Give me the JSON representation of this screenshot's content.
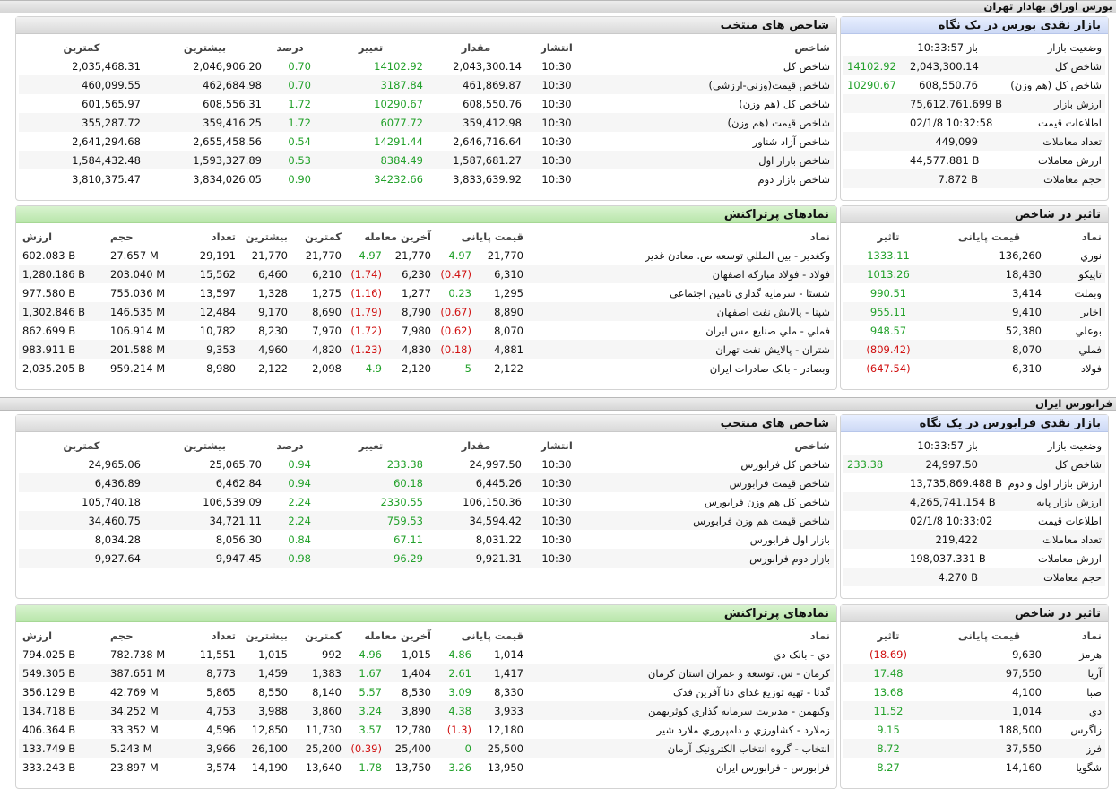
{
  "colors": {
    "positive": "#22a12a",
    "negative": "#d01010"
  },
  "tehran": {
    "section_title": "بورس اوراق بهادار تهران",
    "glance": {
      "title": "بازار نقدی بورس در یک نگاه",
      "rows": [
        {
          "label": "وضعیت بازار",
          "value": "باز 10:33:57",
          "change": ""
        },
        {
          "label": "شاخص کل",
          "value": "2,043,300.14",
          "change": "14102.92"
        },
        {
          "label": "شاخص کل (هم وزن)",
          "value": "608,550.76",
          "change": "10290.67"
        },
        {
          "label": "ارزش بازار",
          "value": "75,612,761.699 B",
          "change": ""
        },
        {
          "label": "اطلاعات قیمت",
          "value": "02/1/8 10:32:58",
          "change": ""
        },
        {
          "label": "تعداد معاملات",
          "value": "449,099",
          "change": ""
        },
        {
          "label": "ارزش معاملات",
          "value": "44,577.881 B",
          "change": ""
        },
        {
          "label": "حجم معاملات",
          "value": "7.872 B",
          "change": ""
        }
      ]
    },
    "indices": {
      "title": "شاخص های منتخب",
      "headers": {
        "name": "شاخص",
        "pub": "انتشار",
        "amount": "مقدار",
        "change": "تغییر",
        "pct": "درصد",
        "max": "بیشترین",
        "min": "کمترین"
      },
      "rows": [
        {
          "name": "شاخص کل",
          "pub": "10:30",
          "amount": "2,043,300.14",
          "change": "14102.92",
          "pct": "0.70",
          "max": "2,046,906.20",
          "min": "2,035,468.31"
        },
        {
          "name": "شاخص قیمت(وزني-ارزشي)",
          "pub": "10:30",
          "amount": "461,869.87",
          "change": "3187.84",
          "pct": "0.70",
          "max": "462,684.98",
          "min": "460,099.55"
        },
        {
          "name": "شاخص کل (هم وزن)",
          "pub": "10:30",
          "amount": "608,550.76",
          "change": "10290.67",
          "pct": "1.72",
          "max": "608,556.31",
          "min": "601,565.97"
        },
        {
          "name": "شاخص قیمت (هم وزن)",
          "pub": "10:30",
          "amount": "359,412.98",
          "change": "6077.72",
          "pct": "1.72",
          "max": "359,416.25",
          "min": "355,287.72"
        },
        {
          "name": "شاخص آزاد شناور",
          "pub": "10:30",
          "amount": "2,646,716.64",
          "change": "14291.44",
          "pct": "0.54",
          "max": "2,655,458.56",
          "min": "2,641,294.68"
        },
        {
          "name": "شاخص بازار اول",
          "pub": "10:30",
          "amount": "1,587,681.27",
          "change": "8384.49",
          "pct": "0.53",
          "max": "1,593,327.89",
          "min": "1,584,432.48"
        },
        {
          "name": "شاخص بازار دوم",
          "pub": "10:30",
          "amount": "3,833,639.92",
          "change": "34232.66",
          "pct": "0.90",
          "max": "3,834,026.05",
          "min": "3,810,375.47"
        }
      ]
    },
    "impact": {
      "title": "تاثیر در شاخص",
      "headers": {
        "symbol": "نماد",
        "close": "قیمت پایانی",
        "effect": "تاثیر"
      },
      "rows": [
        {
          "symbol": "نوري",
          "close": "136,260",
          "effect": "1333.11",
          "neg": false
        },
        {
          "symbol": "تاپيکو",
          "close": "18,430",
          "effect": "1013.26",
          "neg": false
        },
        {
          "symbol": "وبملت",
          "close": "3,414",
          "effect": "990.51",
          "neg": false
        },
        {
          "symbol": "اخابر",
          "close": "9,410",
          "effect": "955.11",
          "neg": false
        },
        {
          "symbol": "بوعلي",
          "close": "52,380",
          "effect": "948.57",
          "neg": false
        },
        {
          "symbol": "فملي",
          "close": "8,070",
          "effect": "(809.42)",
          "neg": true
        },
        {
          "symbol": "فولاد",
          "close": "6,310",
          "effect": "(647.54)",
          "neg": true
        }
      ]
    },
    "active": {
      "title": "نمادهای پرتراکنش",
      "headers": {
        "symbol": "نماد",
        "close": "قیمت پایانی",
        "last": "آخرین معامله",
        "min": "کمترین",
        "max": "بیشترین",
        "count": "تعداد",
        "volume": "حجم",
        "value": "ارزش"
      },
      "rows": [
        {
          "symbol": "وکغدير - بين المللي توسعه ص. معادن غدير",
          "close": "21,770",
          "close_chg": "4.97",
          "close_neg": false,
          "last": "21,770",
          "last_chg": "4.97",
          "last_neg": false,
          "min": "21,770",
          "max": "21,770",
          "count": "29,191",
          "volume": "27.657 M",
          "value": "602.083 B"
        },
        {
          "symbol": "فولاد - فولاد مبارکه اصفهان",
          "close": "6,310",
          "close_chg": "(0.47)",
          "close_neg": true,
          "last": "6,230",
          "last_chg": "(1.74)",
          "last_neg": true,
          "min": "6,210",
          "max": "6,460",
          "count": "15,562",
          "volume": "203.040 M",
          "value": "1,280.186 B"
        },
        {
          "symbol": "شستا - سرمايه گذاري تامين اجتماعي",
          "close": "1,295",
          "close_chg": "0.23",
          "close_neg": false,
          "last": "1,277",
          "last_chg": "(1.16)",
          "last_neg": true,
          "min": "1,275",
          "max": "1,328",
          "count": "13,597",
          "volume": "755.036 M",
          "value": "977.580 B"
        },
        {
          "symbol": "شپنا - پالايش نفت اصفهان",
          "close": "8,890",
          "close_chg": "(0.67)",
          "close_neg": true,
          "last": "8,790",
          "last_chg": "(1.79)",
          "last_neg": true,
          "min": "8,690",
          "max": "9,170",
          "count": "12,484",
          "volume": "146.535 M",
          "value": "1,302.846 B"
        },
        {
          "symbol": "فملي - ملي صنايع مس ايران",
          "close": "8,070",
          "close_chg": "(0.62)",
          "close_neg": true,
          "last": "7,980",
          "last_chg": "(1.72)",
          "last_neg": true,
          "min": "7,970",
          "max": "8,230",
          "count": "10,782",
          "volume": "106.914 M",
          "value": "862.699 B"
        },
        {
          "symbol": "شتران - پالايش نفت تهران",
          "close": "4,881",
          "close_chg": "(0.18)",
          "close_neg": true,
          "last": "4,830",
          "last_chg": "(1.23)",
          "last_neg": true,
          "min": "4,820",
          "max": "4,960",
          "count": "9,353",
          "volume": "201.588 M",
          "value": "983.911 B"
        },
        {
          "symbol": "وبصادر - بانک صادرات ايران",
          "close": "2,122",
          "close_chg": "5",
          "close_neg": false,
          "last": "2,120",
          "last_chg": "4.9",
          "last_neg": false,
          "min": "2,098",
          "max": "2,122",
          "count": "8,980",
          "volume": "959.214 M",
          "value": "2,035.205 B"
        }
      ]
    }
  },
  "farabourse": {
    "section_title": "فرابورس ایران",
    "glance": {
      "title": "بازار نقدی فرابورس در یک نگاه",
      "rows": [
        {
          "label": "وضعیت بازار",
          "value": "باز 10:33:57",
          "change": ""
        },
        {
          "label": "شاخص کل",
          "value": "24,997.50",
          "change": "233.38"
        },
        {
          "label": "ارزش بازار اول و دوم",
          "value": "13,735,869.488 B",
          "change": ""
        },
        {
          "label": "ارزش بازار پایه",
          "value": "4,265,741.154 B",
          "change": ""
        },
        {
          "label": "اطلاعات قیمت",
          "value": "02/1/8 10:33:02",
          "change": ""
        },
        {
          "label": "تعداد معاملات",
          "value": "219,422",
          "change": ""
        },
        {
          "label": "ارزش معاملات",
          "value": "198,037.331 B",
          "change": ""
        },
        {
          "label": "حجم معاملات",
          "value": "4.270 B",
          "change": ""
        }
      ]
    },
    "indices": {
      "title": "شاخص های منتخب",
      "headers": {
        "name": "شاخص",
        "pub": "انتشار",
        "amount": "مقدار",
        "change": "تغییر",
        "pct": "درصد",
        "max": "بیشترین",
        "min": "کمترین"
      },
      "rows": [
        {
          "name": "شاخص کل فرابورس",
          "pub": "10:30",
          "amount": "24,997.50",
          "change": "233.38",
          "pct": "0.94",
          "max": "25,065.70",
          "min": "24,965.06"
        },
        {
          "name": "شاخص قیمت فرابورس",
          "pub": "10:30",
          "amount": "6,445.26",
          "change": "60.18",
          "pct": "0.94",
          "max": "6,462.84",
          "min": "6,436.89"
        },
        {
          "name": "شاخص کل هم وزن فرابورس",
          "pub": "10:30",
          "amount": "106,150.36",
          "change": "2330.55",
          "pct": "2.24",
          "max": "106,539.09",
          "min": "105,740.18"
        },
        {
          "name": "شاخص قیمت هم وزن فرابورس",
          "pub": "10:30",
          "amount": "34,594.42",
          "change": "759.53",
          "pct": "2.24",
          "max": "34,721.11",
          "min": "34,460.75"
        },
        {
          "name": "بازار اول فرابورس",
          "pub": "10:30",
          "amount": "8,031.22",
          "change": "67.11",
          "pct": "0.84",
          "max": "8,056.30",
          "min": "8,034.28"
        },
        {
          "name": "بازار دوم فرابورس",
          "pub": "10:30",
          "amount": "9,921.31",
          "change": "96.29",
          "pct": "0.98",
          "max": "9,947.45",
          "min": "9,927.64"
        }
      ]
    },
    "impact": {
      "title": "تاثیر در شاخص",
      "headers": {
        "symbol": "نماد",
        "close": "قیمت پایانی",
        "effect": "تاثیر"
      },
      "rows": [
        {
          "symbol": "هرمز",
          "close": "9,630",
          "effect": "(18.69)",
          "neg": true
        },
        {
          "symbol": "آريا",
          "close": "97,550",
          "effect": "17.48",
          "neg": false
        },
        {
          "symbol": "صبا",
          "close": "4,100",
          "effect": "13.68",
          "neg": false
        },
        {
          "symbol": "دي",
          "close": "1,014",
          "effect": "11.52",
          "neg": false
        },
        {
          "symbol": "زاگرس",
          "close": "188,500",
          "effect": "9.15",
          "neg": false
        },
        {
          "symbol": "فرز",
          "close": "37,550",
          "effect": "8.72",
          "neg": false
        },
        {
          "symbol": "شگويا",
          "close": "14,160",
          "effect": "8.27",
          "neg": false
        }
      ]
    },
    "active": {
      "title": "نمادهای پرتراکنش",
      "headers": {
        "symbol": "نماد",
        "close": "قیمت پایانی",
        "last": "آخرین معامله",
        "min": "کمترین",
        "max": "بیشترین",
        "count": "تعداد",
        "volume": "حجم",
        "value": "ارزش"
      },
      "rows": [
        {
          "symbol": "دي - بانک دي",
          "close": "1,014",
          "close_chg": "4.86",
          "close_neg": false,
          "last": "1,015",
          "last_chg": "4.96",
          "last_neg": false,
          "min": "992",
          "max": "1,015",
          "count": "11,551",
          "volume": "782.738 M",
          "value": "794.025 B"
        },
        {
          "symbol": "کرمان - س. توسعه و عمران استان کرمان",
          "close": "1,417",
          "close_chg": "2.61",
          "close_neg": false,
          "last": "1,404",
          "last_chg": "1.67",
          "last_neg": false,
          "min": "1,383",
          "max": "1,459",
          "count": "8,773",
          "volume": "387.651 M",
          "value": "549.305 B"
        },
        {
          "symbol": "گدنا - تهيه توزيع غذاي دنا آفرين فدک",
          "close": "8,330",
          "close_chg": "3.09",
          "close_neg": false,
          "last": "8,530",
          "last_chg": "5.57",
          "last_neg": false,
          "min": "8,140",
          "max": "8,550",
          "count": "5,865",
          "volume": "42.769 M",
          "value": "356.129 B"
        },
        {
          "symbol": "وکبهمن - مديريت سرمايه گذاري کوثربهمن",
          "close": "3,933",
          "close_chg": "4.38",
          "close_neg": false,
          "last": "3,890",
          "last_chg": "3.24",
          "last_neg": false,
          "min": "3,860",
          "max": "3,988",
          "count": "4,753",
          "volume": "34.252 M",
          "value": "134.718 B"
        },
        {
          "symbol": "زملارد - کشاورزي و دامپروري ملارد شير",
          "close": "12,180",
          "close_chg": "(1.3)",
          "close_neg": true,
          "last": "12,780",
          "last_chg": "3.57",
          "last_neg": false,
          "min": "11,730",
          "max": "12,850",
          "count": "4,596",
          "volume": "33.352 M",
          "value": "406.364 B"
        },
        {
          "symbol": "انتخاب - گروه انتخاب الکترونيک آرمان",
          "close": "25,500",
          "close_chg": "0",
          "close_neg": false,
          "last": "25,400",
          "last_chg": "(0.39)",
          "last_neg": true,
          "min": "25,200",
          "max": "26,100",
          "count": "3,966",
          "volume": "5.243 M",
          "value": "133.749 B"
        },
        {
          "symbol": "فرابورس - فرابورس ايران",
          "close": "13,950",
          "close_chg": "3.26",
          "close_neg": false,
          "last": "13,750",
          "last_chg": "1.78",
          "last_neg": false,
          "min": "13,640",
          "max": "14,190",
          "count": "3,574",
          "volume": "23.897 M",
          "value": "333.243 B"
        }
      ]
    }
  }
}
